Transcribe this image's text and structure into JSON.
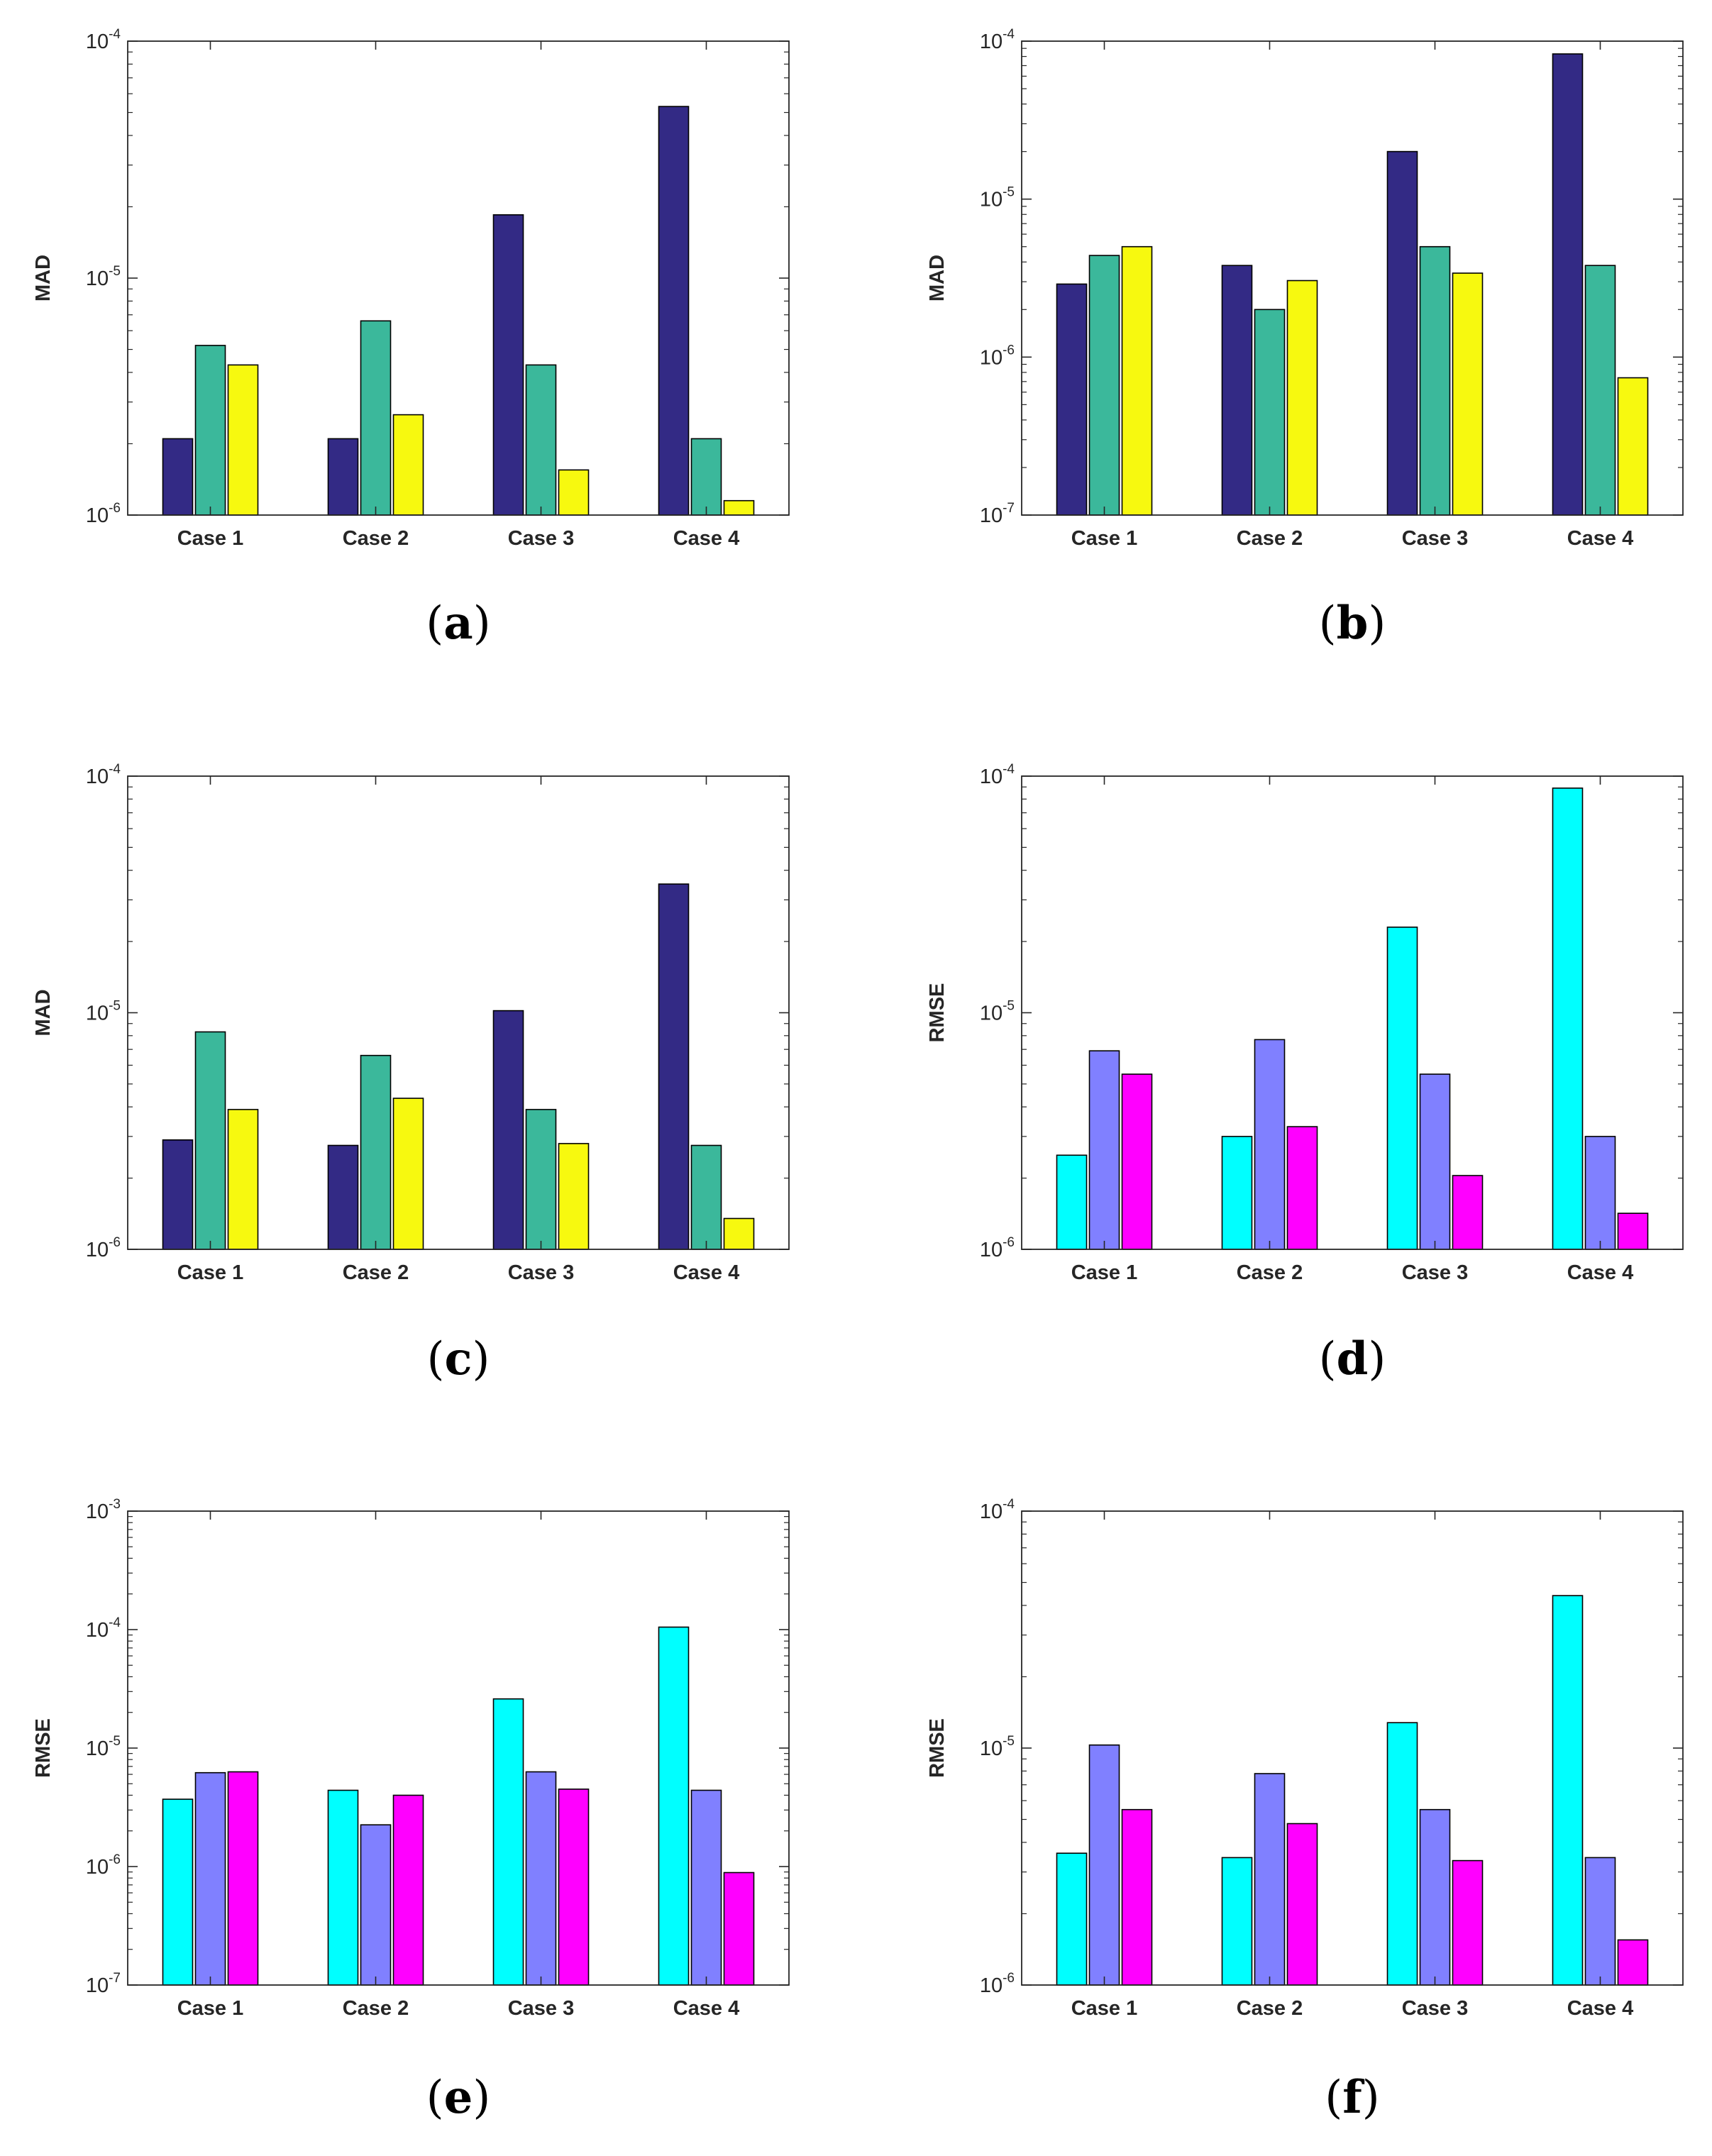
{
  "colors": {
    "navy": "#332a85",
    "teal": "#3bb89b",
    "yellow": "#f7f90f",
    "cyan": "#00ffff",
    "periwinkle": "#8080ff",
    "magenta": "#ff00ff",
    "axis": "#262626"
  },
  "chart_data": [
    {
      "panel": "(a)",
      "panel_letter": "a",
      "type": "bar",
      "yscale": "log",
      "ylim": [
        1e-06,
        0.0001
      ],
      "ylabel": "MAD",
      "xlabel": "",
      "categories": [
        "Case 1",
        "Case 2",
        "Case 3",
        "Case 4"
      ],
      "colors": [
        "#332a85",
        "#3bb89b",
        "#f7f90f"
      ],
      "series": [
        {
          "values": [
            2.1e-06,
            2.1e-06,
            1.85e-05,
            5.3e-05
          ]
        },
        {
          "values": [
            5.2e-06,
            6.6e-06,
            4.3e-06,
            2.1e-06
          ]
        },
        {
          "values": [
            4.3e-06,
            2.65e-06,
            1.55e-06,
            1.15e-06
          ]
        }
      ]
    },
    {
      "panel": "(b)",
      "panel_letter": "b",
      "type": "bar",
      "yscale": "log",
      "ylim": [
        1e-07,
        0.0001
      ],
      "ylabel": "MAD",
      "xlabel": "",
      "categories": [
        "Case 1",
        "Case 2",
        "Case 3",
        "Case 4"
      ],
      "colors": [
        "#332a85",
        "#3bb89b",
        "#f7f90f"
      ],
      "series": [
        {
          "values": [
            2.9e-06,
            3.8e-06,
            2e-05,
            8.3e-05
          ]
        },
        {
          "values": [
            4.4e-06,
            2e-06,
            5e-06,
            3.8e-06
          ]
        },
        {
          "values": [
            5e-06,
            3.05e-06,
            3.4e-06,
            7.4e-07
          ]
        }
      ]
    },
    {
      "panel": "(c)",
      "panel_letter": "c",
      "type": "bar",
      "yscale": "log",
      "ylim": [
        1e-06,
        0.0001
      ],
      "ylabel": "MAD",
      "xlabel": "",
      "categories": [
        "Case 1",
        "Case 2",
        "Case 3",
        "Case 4"
      ],
      "colors": [
        "#332a85",
        "#3bb89b",
        "#f7f90f"
      ],
      "series": [
        {
          "values": [
            2.9e-06,
            2.75e-06,
            1.02e-05,
            3.5e-05
          ]
        },
        {
          "values": [
            8.3e-06,
            6.6e-06,
            3.9e-06,
            2.75e-06
          ]
        },
        {
          "values": [
            3.9e-06,
            4.35e-06,
            2.8e-06,
            1.35e-06
          ]
        }
      ]
    },
    {
      "panel": "(d)",
      "panel_letter": "d",
      "type": "bar",
      "yscale": "log",
      "ylim": [
        1e-06,
        0.0001
      ],
      "ylabel": "RMSE",
      "xlabel": "",
      "categories": [
        "Case 1",
        "Case 2",
        "Case 3",
        "Case 4"
      ],
      "colors": [
        "#00ffff",
        "#8080ff",
        "#ff00ff"
      ],
      "series": [
        {
          "values": [
            2.5e-06,
            3e-06,
            2.3e-05,
            8.9e-05
          ]
        },
        {
          "values": [
            6.9e-06,
            7.7e-06,
            5.5e-06,
            3e-06
          ]
        },
        {
          "values": [
            5.5e-06,
            3.3e-06,
            2.05e-06,
            1.42e-06
          ]
        }
      ]
    },
    {
      "panel": "(e)",
      "panel_letter": "e",
      "type": "bar",
      "yscale": "log",
      "ylim": [
        1e-07,
        0.001
      ],
      "ylabel": "RMSE",
      "xlabel": "",
      "categories": [
        "Case 1",
        "Case 2",
        "Case 3",
        "Case 4"
      ],
      "colors": [
        "#00ffff",
        "#8080ff",
        "#ff00ff"
      ],
      "series": [
        {
          "values": [
            3.7e-06,
            4.4e-06,
            2.6e-05,
            0.000105
          ]
        },
        {
          "values": [
            6.2e-06,
            2.25e-06,
            6.3e-06,
            4.4e-06
          ]
        },
        {
          "values": [
            6.3e-06,
            4e-06,
            4.5e-06,
            8.9e-07
          ]
        }
      ]
    },
    {
      "panel": "(f)",
      "panel_letter": "f",
      "type": "bar",
      "yscale": "log",
      "ylim": [
        1e-06,
        0.0001
      ],
      "ylabel": "RMSE",
      "xlabel": "",
      "categories": [
        "Case 1",
        "Case 2",
        "Case 3",
        "Case 4"
      ],
      "colors": [
        "#00ffff",
        "#8080ff",
        "#ff00ff"
      ],
      "series": [
        {
          "values": [
            3.6e-06,
            3.45e-06,
            1.28e-05,
            4.4e-05
          ]
        },
        {
          "values": [
            1.03e-05,
            7.8e-06,
            5.5e-06,
            3.45e-06
          ]
        },
        {
          "values": [
            5.5e-06,
            4.8e-06,
            3.35e-06,
            1.55e-06
          ]
        }
      ]
    }
  ]
}
